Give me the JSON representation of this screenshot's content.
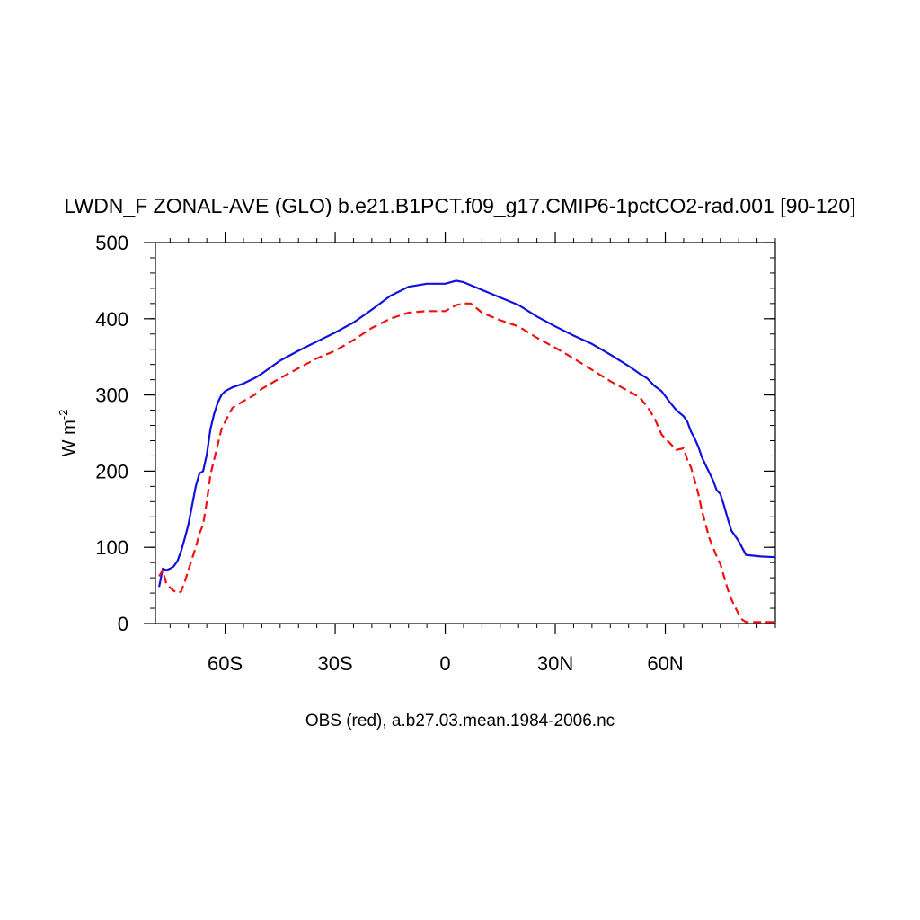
{
  "chart_data": {
    "type": "line",
    "title": "LWDN_F ZONAL-AVE (GLO) b.e21.B1PCT.f09_g17.CMIP6-1pctCO2-rad.001 [90-120]",
    "ylabel": "W m",
    "ylabel_sup": "-2",
    "footer": "OBS (red), a.b27.03.mean.1984-2006.nc",
    "xlim": [
      -79,
      90
    ],
    "ylim": [
      0,
      500
    ],
    "x_ticks": [
      {
        "value": -60,
        "label": "60S"
      },
      {
        "value": -30,
        "label": "30S"
      },
      {
        "value": 0,
        "label": "0"
      },
      {
        "value": 30,
        "label": "30N"
      },
      {
        "value": 60,
        "label": "60N"
      }
    ],
    "y_ticks": [
      {
        "value": 0,
        "label": "0"
      },
      {
        "value": 100,
        "label": "100"
      },
      {
        "value": 200,
        "label": "200"
      },
      {
        "value": 300,
        "label": "300"
      },
      {
        "value": 400,
        "label": "400"
      },
      {
        "value": 500,
        "label": "500"
      }
    ],
    "grid": false,
    "series": [
      {
        "color": "#1010e0",
        "dash": "solid",
        "x": [
          -78,
          -77,
          -76,
          -75,
          -74,
          -73,
          -72,
          -71,
          -70,
          -69,
          -68,
          -67,
          -66,
          -65,
          -64,
          -63,
          -62,
          -61,
          -60,
          -58,
          -55,
          -52,
          -50,
          -45,
          -40,
          -35,
          -30,
          -25,
          -20,
          -15,
          -10,
          -5,
          0,
          3,
          5,
          10,
          15,
          20,
          25,
          30,
          35,
          40,
          45,
          50,
          53,
          55,
          57,
          59,
          61,
          63,
          65,
          66,
          67,
          68,
          69,
          70,
          71,
          72,
          73,
          74,
          75,
          76,
          77,
          78,
          80,
          82,
          84,
          86,
          90
        ],
        "y": [
          48,
          72,
          70,
          72,
          75,
          82,
          95,
          112,
          130,
          155,
          180,
          197,
          200,
          222,
          255,
          275,
          290,
          300,
          305,
          310,
          315,
          322,
          328,
          345,
          358,
          370,
          382,
          395,
          412,
          430,
          442,
          446,
          446,
          450,
          448,
          438,
          428,
          418,
          403,
          390,
          378,
          367,
          353,
          338,
          328,
          322,
          312,
          305,
          292,
          280,
          272,
          265,
          252,
          243,
          232,
          218,
          208,
          198,
          188,
          175,
          170,
          155,
          138,
          122,
          108,
          90,
          89,
          88,
          87
        ]
      },
      {
        "color": "#f01010",
        "dash": "dashed",
        "x": [
          -78,
          -77,
          -76,
          -75,
          -74,
          -73,
          -72,
          -71,
          -70,
          -69,
          -68,
          -67,
          -66,
          -65,
          -64,
          -63,
          -62,
          -61,
          -60,
          -58,
          -55,
          -52,
          -50,
          -45,
          -40,
          -35,
          -30,
          -25,
          -20,
          -15,
          -10,
          -5,
          0,
          3,
          5,
          7,
          10,
          15,
          20,
          25,
          30,
          35,
          40,
          45,
          50,
          53,
          55,
          57,
          59,
          61,
          63,
          65,
          66,
          67,
          68,
          69,
          70,
          71,
          72,
          73,
          74,
          75,
          76,
          77,
          78,
          79,
          80,
          81,
          82,
          84,
          86,
          90
        ],
        "y": [
          62,
          70,
          52,
          47,
          43,
          40,
          42,
          55,
          70,
          85,
          100,
          118,
          130,
          160,
          195,
          215,
          235,
          255,
          265,
          283,
          292,
          300,
          308,
          322,
          335,
          348,
          358,
          372,
          388,
          400,
          408,
          410,
          410,
          418,
          420,
          420,
          408,
          398,
          390,
          375,
          362,
          348,
          333,
          318,
          305,
          297,
          285,
          270,
          248,
          238,
          228,
          230,
          215,
          205,
          188,
          170,
          148,
          130,
          112,
          100,
          88,
          78,
          62,
          45,
          32,
          22,
          12,
          5,
          2,
          2,
          2,
          2
        ]
      }
    ]
  }
}
